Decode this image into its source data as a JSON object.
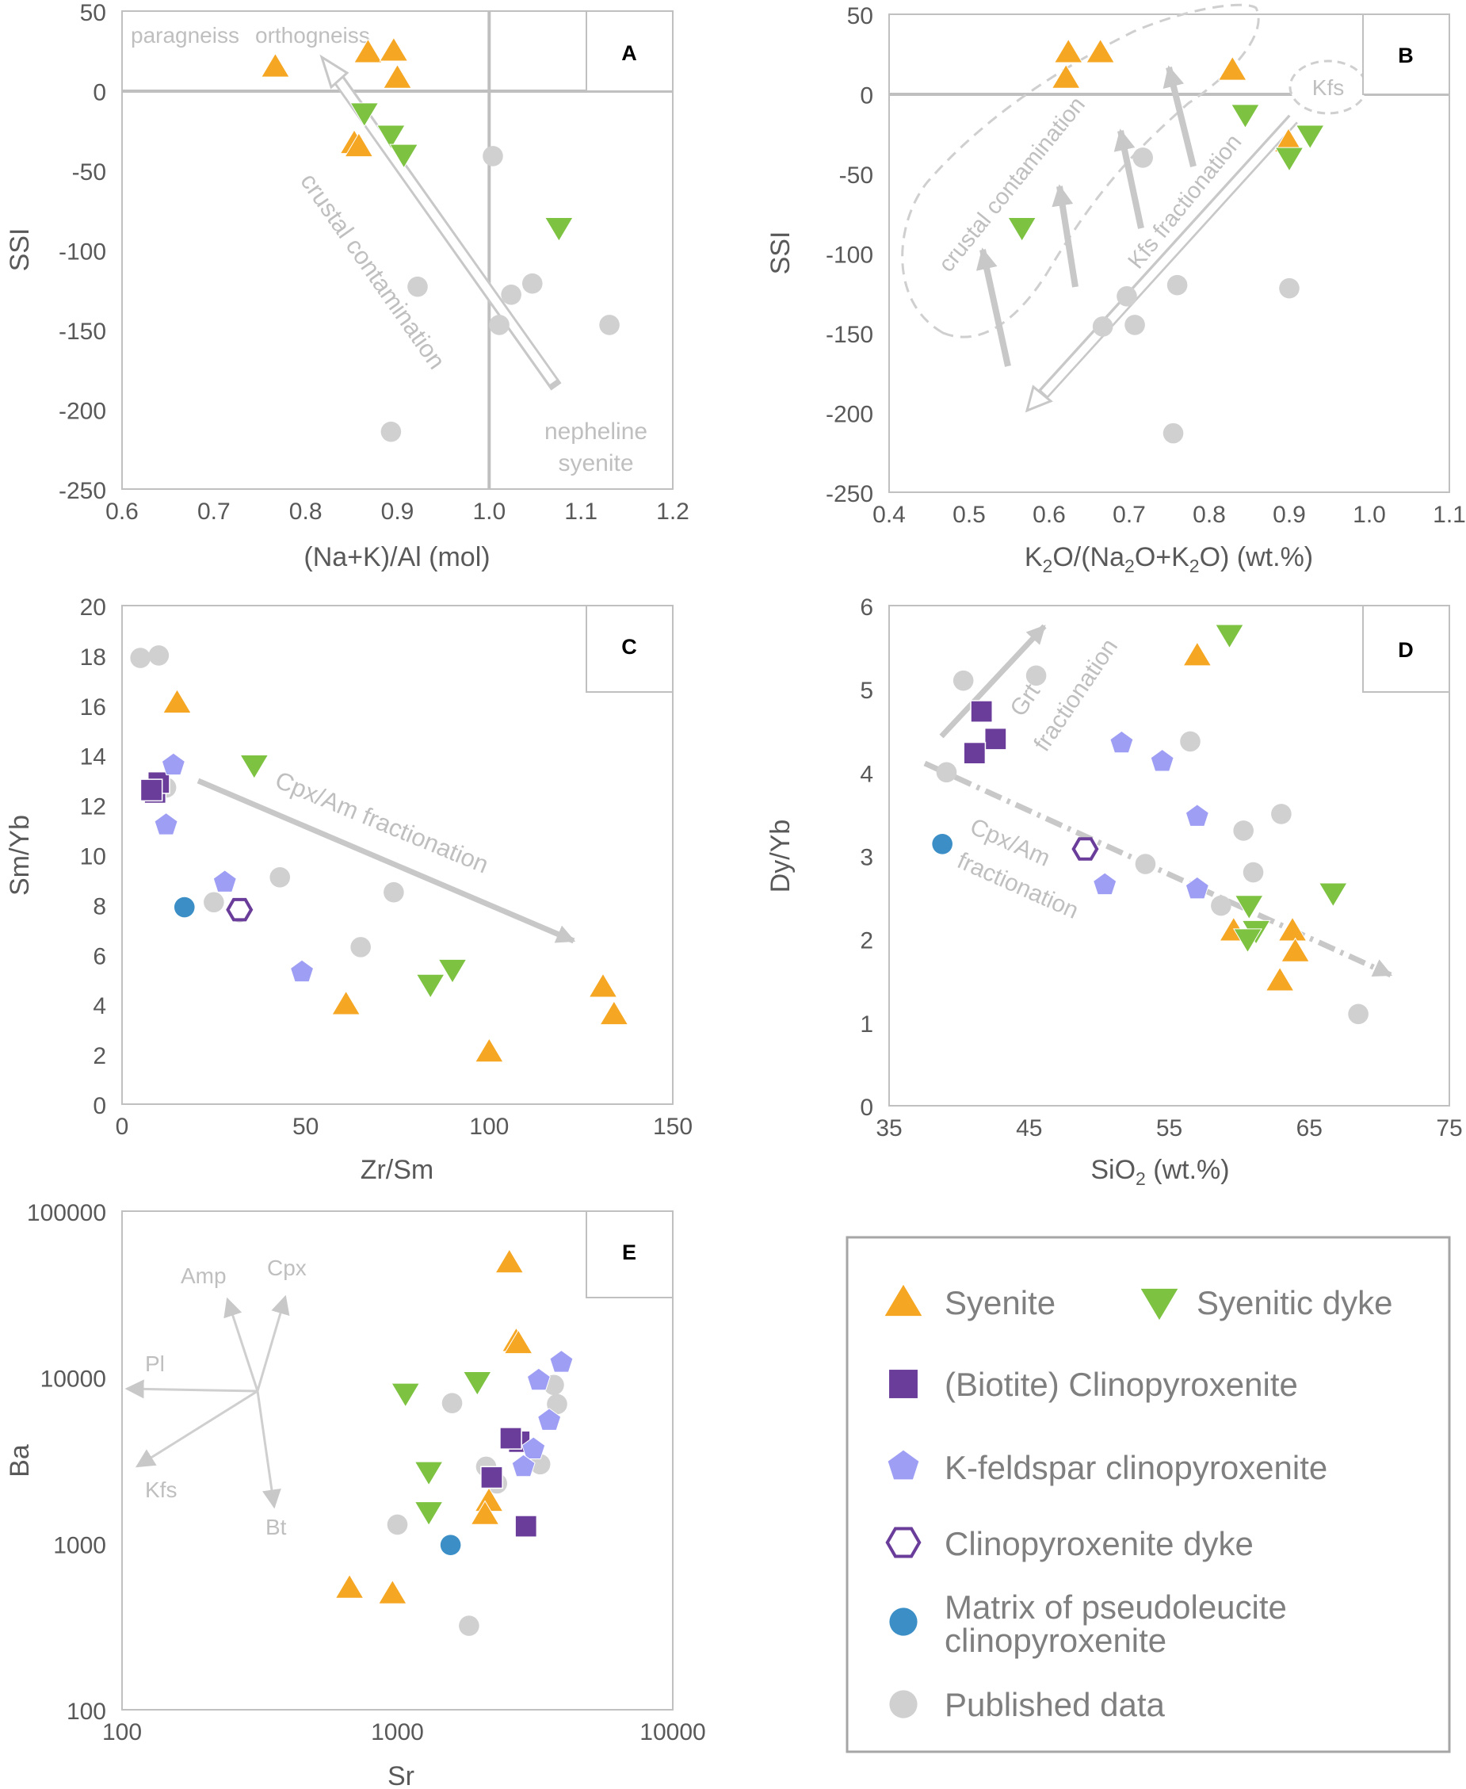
{
  "colors": {
    "syenite": "#f5a623",
    "syenitic_dyke": "#7dc241",
    "biotite_clinopyroxenite": "#6a3d9a",
    "kfeldspar_clinopyroxenite": "#9e9ef5",
    "clinopyroxenite_dyke": "#6a3d9a",
    "matrix": "#3b8fc6",
    "published": "#d0d0d0",
    "axis": "#bfbfbf",
    "annotation": "#bfbfbf"
  },
  "legend": {
    "items": [
      {
        "key": "syenite",
        "label": "Syenite",
        "marker": "triangle-up"
      },
      {
        "key": "syenitic_dyke",
        "label": "Syenitic dyke",
        "marker": "triangle-down"
      },
      {
        "key": "biotite_clinopyroxenite",
        "label": "(Biotite) Clinopyroxenite",
        "marker": "square"
      },
      {
        "key": "kfeldspar_clinopyroxenite",
        "label": "K-feldspar clinopyroxenite",
        "marker": "pentagon"
      },
      {
        "key": "clinopyroxenite_dyke",
        "label": "Clinopyroxenite dyke",
        "marker": "hexagon-open"
      },
      {
        "key": "matrix",
        "label_line1": "Matrix of pseudoleucite",
        "label_line2": "clinopyroxenite",
        "marker": "circle"
      },
      {
        "key": "published",
        "label": "Published data",
        "marker": "circle"
      }
    ]
  },
  "chart_data": [
    {
      "id": "A",
      "type": "scatter",
      "panel_label": "A",
      "xlabel": "(Na+K)/Al (mol)",
      "ylabel": "SSI",
      "xlim": [
        0.6,
        1.2
      ],
      "ylim": [
        -250,
        50
      ],
      "xticks": [
        0.6,
        0.7,
        0.8,
        0.9,
        1.0,
        1.1,
        1.2
      ],
      "xtick_labels": [
        "0.6",
        "0.7",
        "0.8",
        "0.9",
        "1.0",
        "1.1",
        "1.2"
      ],
      "yticks": [
        -250,
        -200,
        -150,
        -100,
        -50,
        0,
        50
      ],
      "ytick_labels": [
        "-250",
        "-200",
        "-150",
        "-100",
        "-50",
        "0",
        "50"
      ],
      "reference_lines": {
        "y": 0,
        "x": 1.0
      },
      "annotations": {
        "paragneiss": "paragneiss",
        "orthogneiss": "orthogneiss",
        "crustal_contamination": "crustal contamination",
        "nepheline_line1": "nepheline",
        "nepheline_line2": "syenite"
      },
      "series": [
        {
          "key": "syenite",
          "points": [
            [
              0.767,
              15
            ],
            [
              0.868,
              24
            ],
            [
              0.896,
              25
            ],
            [
              0.9,
              8
            ],
            [
              0.853,
              -33
            ],
            [
              0.858,
              -35
            ]
          ]
        },
        {
          "key": "syenitic_dyke",
          "points": [
            [
              0.864,
              -14
            ],
            [
              0.893,
              -28
            ],
            [
              0.907,
              -40
            ],
            [
              1.076,
              -86
            ]
          ]
        },
        {
          "key": "published",
          "points": [
            [
              1.004,
              -41
            ],
            [
              0.922,
              -123
            ],
            [
              1.024,
              -128
            ],
            [
              1.047,
              -121
            ],
            [
              1.011,
              -147
            ],
            [
              1.131,
              -147
            ],
            [
              0.893,
              -214
            ]
          ]
        }
      ]
    },
    {
      "id": "B",
      "type": "scatter",
      "panel_label": "B",
      "xlabel": "K2O/(Na2O+K2O) (wt.%)",
      "ylabel": "SSI",
      "xlim": [
        0.4,
        1.1
      ],
      "ylim": [
        -250,
        50
      ],
      "xticks": [
        0.4,
        0.5,
        0.6,
        0.7,
        0.8,
        0.9,
        1.0,
        1.1
      ],
      "xtick_labels": [
        "0.4",
        "0.5",
        "0.6",
        "0.7",
        "0.8",
        "0.9",
        "1.0",
        "1.1"
      ],
      "yticks": [
        -250,
        -200,
        -150,
        -100,
        -50,
        0,
        50
      ],
      "ytick_labels": [
        "-250",
        "-200",
        "-150",
        "-100",
        "-50",
        "0",
        "50"
      ],
      "reference_lines": {
        "y": 0
      },
      "annotations": {
        "crustal_contamination": "crustal contamination",
        "kfs_fractionation": "Kfs fractionation",
        "kfs": "Kfs"
      },
      "series": [
        {
          "key": "syenite",
          "points": [
            [
              0.624,
              26
            ],
            [
              0.664,
              26
            ],
            [
              0.621,
              10
            ],
            [
              0.829,
              15
            ],
            [
              0.899,
              -30
            ]
          ]
        },
        {
          "key": "syenitic_dyke",
          "points": [
            [
              0.845,
              -13
            ],
            [
              0.926,
              -26
            ],
            [
              0.9,
              -40
            ],
            [
              0.566,
              -84
            ]
          ]
        },
        {
          "key": "published",
          "points": [
            [
              0.717,
              -40
            ],
            [
              0.76,
              -120
            ],
            [
              0.697,
              -127
            ],
            [
              0.9,
              -122
            ],
            [
              0.667,
              -146
            ],
            [
              0.707,
              -145
            ],
            [
              0.755,
              -213
            ]
          ]
        }
      ]
    },
    {
      "id": "C",
      "type": "scatter",
      "panel_label": "C",
      "xlabel": "Zr/Sm",
      "ylabel": "Sm/Yb",
      "xlim": [
        0,
        150
      ],
      "ylim": [
        0,
        20
      ],
      "xticks": [
        0,
        50,
        100,
        150
      ],
      "xtick_labels": [
        "0",
        "50",
        "100",
        "150"
      ],
      "yticks": [
        0,
        2,
        4,
        6,
        8,
        10,
        12,
        14,
        16,
        18,
        20
      ],
      "ytick_labels": [
        "0",
        "2",
        "4",
        "6",
        "8",
        "10",
        "12",
        "14",
        "16",
        "18",
        "20"
      ],
      "annotations": {
        "cpx_am": "Cpx/Am fractionation"
      },
      "series": [
        {
          "key": "published",
          "points": [
            [
              5,
              17.9
            ],
            [
              10,
              18
            ],
            [
              12,
              12.7
            ],
            [
              43,
              9.1
            ],
            [
              74,
              8.5
            ],
            [
              65,
              6.3
            ],
            [
              25,
              8.1
            ],
            [
              32,
              7.7
            ]
          ]
        },
        {
          "key": "syenite",
          "points": [
            [
              15,
              16.1
            ],
            [
              61,
              4
            ],
            [
              100,
              2.1
            ],
            [
              131,
              4.7
            ],
            [
              134,
              3.6
            ]
          ]
        },
        {
          "key": "syenitic_dyke",
          "points": [
            [
              36,
              13.6
            ],
            [
              84,
              4.8
            ],
            [
              90,
              5.4
            ]
          ]
        },
        {
          "key": "biotite_clinopyroxenite",
          "points": [
            [
              9,
              12.5
            ],
            [
              10,
              12.9
            ],
            [
              8,
              12.6
            ]
          ]
        },
        {
          "key": "kfeldspar_clinopyroxenite",
          "points": [
            [
              14,
              13.6
            ],
            [
              12,
              11.2
            ],
            [
              28,
              8.9
            ],
            [
              49,
              5.3
            ]
          ]
        },
        {
          "key": "clinopyroxenite_dyke",
          "points": [
            [
              32,
              7.8
            ]
          ]
        },
        {
          "key": "matrix",
          "points": [
            [
              17,
              7.9
            ]
          ]
        }
      ]
    },
    {
      "id": "D",
      "type": "scatter",
      "panel_label": "D",
      "xlabel": "SiO2 (wt.%)",
      "ylabel": "Dy/Yb",
      "xlim": [
        35,
        75
      ],
      "ylim": [
        0,
        6
      ],
      "xticks": [
        35,
        45,
        55,
        65,
        75
      ],
      "xtick_labels": [
        "35",
        "45",
        "55",
        "65",
        "75"
      ],
      "yticks": [
        0,
        1,
        2,
        3,
        4,
        5,
        6
      ],
      "ytick_labels": [
        "0",
        "1",
        "2",
        "3",
        "4",
        "5",
        "6"
      ],
      "annotations": {
        "grt_line1": "Grt",
        "grt_line2": "fractionation",
        "cpx_line1": "Cpx/Am",
        "cpx_line2": "fractionation"
      },
      "series": [
        {
          "key": "published",
          "points": [
            [
              40.3,
              5.1
            ],
            [
              45.5,
              5.16
            ],
            [
              39.1,
              4.0
            ],
            [
              56.5,
              4.37
            ],
            [
              60.3,
              3.3
            ],
            [
              63,
              3.5
            ],
            [
              61,
              2.8
            ],
            [
              53.3,
              2.9
            ],
            [
              58.7,
              2.4
            ],
            [
              68.5,
              1.1
            ]
          ]
        },
        {
          "key": "syenite",
          "points": [
            [
              57,
              5.4
            ],
            [
              59.6,
              2.1
            ],
            [
              63.8,
              2.1
            ],
            [
              64,
              1.85
            ],
            [
              62.9,
              1.5
            ]
          ]
        },
        {
          "key": "syenitic_dyke",
          "points": [
            [
              59.3,
              5.65
            ],
            [
              60.7,
              2.4
            ],
            [
              61.2,
              2.1
            ],
            [
              60.6,
              2.0
            ],
            [
              66.7,
              2.55
            ]
          ]
        },
        {
          "key": "biotite_clinopyroxenite",
          "points": [
            [
              41.6,
              4.73
            ],
            [
              42.6,
              4.4
            ],
            [
              41.1,
              4.23
            ]
          ]
        },
        {
          "key": "kfeldspar_clinopyroxenite",
          "points": [
            [
              51.6,
              4.35
            ],
            [
              54.5,
              4.13
            ],
            [
              57,
              3.47
            ],
            [
              57,
              2.6
            ],
            [
              50.4,
              2.65
            ]
          ]
        },
        {
          "key": "clinopyroxenite_dyke",
          "points": [
            [
              49,
              3.08
            ]
          ]
        },
        {
          "key": "matrix",
          "points": [
            [
              38.8,
              3.14
            ]
          ]
        }
      ]
    },
    {
      "id": "E",
      "type": "scatter",
      "panel_label": "E",
      "log_axes": true,
      "xlabel": "Sr",
      "ylabel": "Ba",
      "xlim": [
        100,
        10000
      ],
      "ylim": [
        100,
        100000
      ],
      "xticks": [
        100,
        1000,
        10000
      ],
      "xtick_labels": [
        "100",
        "1000",
        "10000"
      ],
      "yticks": [
        100,
        1000,
        10000,
        100000
      ],
      "ytick_labels": [
        "100",
        "1000",
        "10000",
        "100000"
      ],
      "vectors": {
        "amp": "Amp",
        "cpx": "Cpx",
        "pl": "Pl",
        "kfs": "Kfs",
        "bt": "Bt"
      },
      "series": [
        {
          "key": "published",
          "points": [
            [
              1000,
              1300
            ],
            [
              1580,
              7000
            ],
            [
              3700,
              9000
            ],
            [
              3800,
              6900
            ],
            [
              3300,
              3000
            ],
            [
              2100,
              2900
            ],
            [
              2300,
              2300
            ],
            [
              1820,
              320
            ]
          ]
        },
        {
          "key": "syenite",
          "points": [
            [
              2550,
              49000
            ],
            [
              2700,
              16500
            ],
            [
              2750,
              16000
            ],
            [
              2150,
              1800
            ],
            [
              2080,
              1500
            ],
            [
              670,
              540
            ],
            [
              960,
              500
            ]
          ]
        },
        {
          "key": "syenitic_dyke",
          "points": [
            [
              1070,
              8000
            ],
            [
              1950,
              9400
            ],
            [
              1300,
              2700
            ],
            [
              1300,
              1550
            ]
          ]
        },
        {
          "key": "biotite_clinopyroxenite",
          "points": [
            [
              2770,
              4100
            ],
            [
              2580,
              4300
            ],
            [
              2200,
              2500
            ],
            [
              2930,
              1270
            ]
          ]
        },
        {
          "key": "kfeldspar_clinopyroxenite",
          "points": [
            [
              3940,
              12300
            ],
            [
              3260,
              9600
            ],
            [
              3560,
              5500
            ],
            [
              3120,
              3700
            ],
            [
              2870,
              2900
            ]
          ]
        },
        {
          "key": "matrix",
          "points": [
            [
              1560,
              980
            ]
          ]
        }
      ]
    }
  ]
}
